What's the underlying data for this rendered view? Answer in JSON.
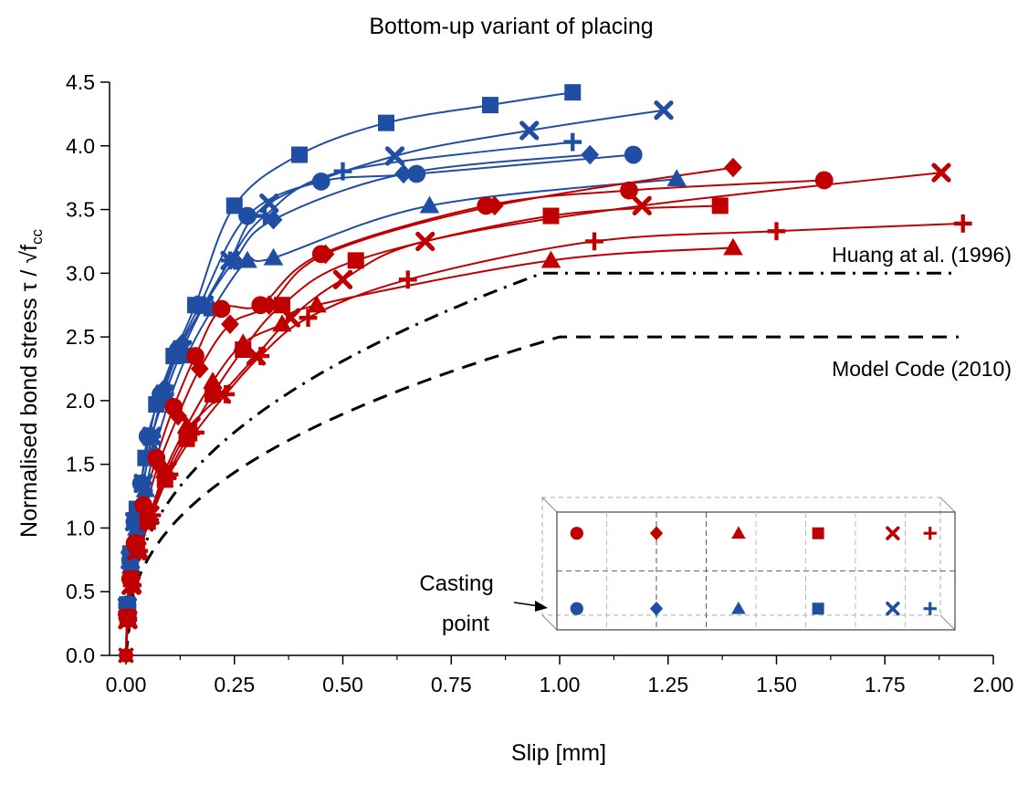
{
  "chart_data": {
    "type": "line",
    "title": "Bottom-up variant of placing",
    "xlabel": "Slip [mm]",
    "ylabel_main": "Normalised bond stress τ / √f",
    "ylabel_sub": "cc",
    "xlim": [
      0,
      2.0
    ],
    "ylim": [
      0,
      4.5
    ],
    "xticks": [
      "0.00",
      "0.25",
      "0.50",
      "0.75",
      "1.00",
      "1.25",
      "1.50",
      "1.75",
      "2.00"
    ],
    "yticks": [
      "0.0",
      "0.5",
      "1.0",
      "1.5",
      "2.0",
      "2.5",
      "3.0",
      "3.5",
      "4.0",
      "4.5"
    ],
    "colors": {
      "red": "#c00000",
      "blue": "#1f4ea3",
      "axis": "#000000",
      "box": "#888888"
    },
    "series": [
      {
        "name": "blue-circle",
        "color": "blue",
        "marker": "circle",
        "x": [
          0,
          0.003,
          0.01,
          0.02,
          0.035,
          0.05,
          0.08,
          0.12,
          0.17,
          0.28,
          0.45,
          0.67,
          1.17
        ],
        "y": [
          0,
          0.4,
          0.75,
          1.05,
          1.35,
          1.72,
          2.05,
          2.4,
          2.75,
          3.45,
          3.72,
          3.78,
          3.93
        ]
      },
      {
        "name": "blue-diamond",
        "color": "blue",
        "marker": "diamond",
        "x": [
          0,
          0.003,
          0.01,
          0.02,
          0.04,
          0.06,
          0.09,
          0.13,
          0.18,
          0.25,
          0.34,
          0.64,
          1.07
        ],
        "y": [
          0,
          0.35,
          0.72,
          1.02,
          1.35,
          1.72,
          2.1,
          2.45,
          2.75,
          3.1,
          3.42,
          3.78,
          3.93
        ]
      },
      {
        "name": "blue-triangle",
        "color": "blue",
        "marker": "triangle",
        "x": [
          0,
          0.004,
          0.012,
          0.025,
          0.045,
          0.065,
          0.1,
          0.14,
          0.2,
          0.28,
          0.34,
          0.7,
          1.27
        ],
        "y": [
          0,
          0.35,
          0.7,
          1.0,
          1.3,
          1.6,
          2.0,
          2.35,
          2.72,
          3.1,
          3.12,
          3.53,
          3.74
        ]
      },
      {
        "name": "blue-square",
        "color": "blue",
        "marker": "square",
        "x": [
          0,
          0.003,
          0.01,
          0.025,
          0.045,
          0.07,
          0.11,
          0.16,
          0.25,
          0.4,
          0.6,
          0.84,
          1.03
        ],
        "y": [
          0,
          0.4,
          0.8,
          1.15,
          1.55,
          1.97,
          2.35,
          2.75,
          3.53,
          3.93,
          4.18,
          4.32,
          4.42
        ]
      },
      {
        "name": "blue-x",
        "color": "blue",
        "marker": "x",
        "x": [
          0,
          0.003,
          0.01,
          0.02,
          0.04,
          0.06,
          0.09,
          0.13,
          0.18,
          0.24,
          0.33,
          0.62,
          0.93,
          1.24
        ],
        "y": [
          0,
          0.38,
          0.75,
          1.05,
          1.35,
          1.72,
          2.05,
          2.4,
          2.75,
          3.1,
          3.55,
          3.92,
          4.12,
          4.28
        ]
      },
      {
        "name": "blue-plus",
        "color": "blue",
        "marker": "plus",
        "x": [
          0,
          0.003,
          0.01,
          0.02,
          0.04,
          0.06,
          0.09,
          0.13,
          0.18,
          0.24,
          0.32,
          0.5,
          1.03
        ],
        "y": [
          0,
          0.38,
          0.75,
          1.05,
          1.35,
          1.72,
          2.05,
          2.4,
          2.75,
          3.1,
          3.45,
          3.8,
          4.03
        ]
      },
      {
        "name": "red-circle",
        "color": "red",
        "marker": "circle",
        "x": [
          0,
          0.003,
          0.01,
          0.02,
          0.04,
          0.07,
          0.11,
          0.16,
          0.22,
          0.31,
          0.45,
          0.83,
          1.16,
          1.61
        ],
        "y": [
          0,
          0.3,
          0.6,
          0.88,
          1.18,
          1.55,
          1.95,
          2.35,
          2.72,
          2.75,
          3.15,
          3.53,
          3.65,
          3.73
        ]
      },
      {
        "name": "red-diamond",
        "color": "red",
        "marker": "diamond",
        "x": [
          0,
          0.004,
          0.012,
          0.025,
          0.045,
          0.075,
          0.12,
          0.17,
          0.24,
          0.33,
          0.46,
          0.85,
          1.4
        ],
        "y": [
          0,
          0.3,
          0.6,
          0.88,
          1.15,
          1.5,
          1.88,
          2.25,
          2.6,
          2.75,
          3.15,
          3.53,
          3.83
        ]
      },
      {
        "name": "red-triangle",
        "color": "red",
        "marker": "triangle",
        "x": [
          0,
          0.005,
          0.015,
          0.03,
          0.055,
          0.09,
          0.14,
          0.2,
          0.27,
          0.36,
          0.44,
          0.98,
          1.4
        ],
        "y": [
          0,
          0.28,
          0.55,
          0.82,
          1.1,
          1.45,
          1.8,
          2.15,
          2.45,
          2.6,
          2.75,
          3.1,
          3.2
        ]
      },
      {
        "name": "red-square",
        "color": "red",
        "marker": "square",
        "x": [
          0,
          0.004,
          0.012,
          0.025,
          0.05,
          0.09,
          0.14,
          0.2,
          0.27,
          0.36,
          0.53,
          0.98,
          1.37
        ],
        "y": [
          0,
          0.3,
          0.6,
          0.88,
          1.05,
          1.38,
          1.7,
          2.05,
          2.4,
          2.75,
          3.1,
          3.45,
          3.53
        ]
      },
      {
        "name": "red-x",
        "color": "red",
        "marker": "x",
        "x": [
          0,
          0.004,
          0.012,
          0.025,
          0.055,
          0.095,
          0.15,
          0.22,
          0.3,
          0.38,
          0.5,
          0.69,
          1.19,
          1.88
        ],
        "y": [
          0,
          0.28,
          0.55,
          0.82,
          1.1,
          1.45,
          1.8,
          2.05,
          2.35,
          2.65,
          2.95,
          3.25,
          3.53,
          3.79
        ]
      },
      {
        "name": "red-plus",
        "color": "red",
        "marker": "plus",
        "x": [
          0,
          0.005,
          0.015,
          0.03,
          0.06,
          0.1,
          0.16,
          0.23,
          0.31,
          0.42,
          0.65,
          1.08,
          1.5,
          1.93
        ],
        "y": [
          0,
          0.28,
          0.55,
          0.82,
          1.1,
          1.42,
          1.75,
          2.05,
          2.35,
          2.65,
          2.95,
          3.25,
          3.33,
          3.39
        ]
      }
    ],
    "reference_curves": [
      {
        "name": "Huang at al. (1996)",
        "style": "dash-dot",
        "tau_max": 3.0,
        "s1": 0.96,
        "alpha": 0.4,
        "x_end": 1.92
      },
      {
        "name": "Model Code (2010)",
        "style": "dashed",
        "tau_max": 2.5,
        "s1": 1.0,
        "alpha": 0.4,
        "x_end": 1.92
      }
    ],
    "annotations": {
      "huang": "Huang at al. (1996)",
      "model_code": "Model Code (2010)",
      "casting_line1": "Casting",
      "casting_line2": "point"
    },
    "inset": {
      "description_rows": [
        "top",
        "bottom"
      ],
      "top_row": [
        {
          "marker": "circle",
          "color": "red"
        },
        {
          "marker": "diamond",
          "color": "red"
        },
        {
          "marker": "triangle",
          "color": "red"
        },
        {
          "marker": "square",
          "color": "red"
        },
        {
          "marker": "x",
          "color": "red"
        },
        {
          "marker": "plus",
          "color": "red"
        }
      ],
      "bottom_row": [
        {
          "marker": "circle",
          "color": "blue"
        },
        {
          "marker": "diamond",
          "color": "blue"
        },
        {
          "marker": "triangle",
          "color": "blue"
        },
        {
          "marker": "square",
          "color": "blue"
        },
        {
          "marker": "x",
          "color": "blue"
        },
        {
          "marker": "plus",
          "color": "blue"
        }
      ]
    }
  }
}
